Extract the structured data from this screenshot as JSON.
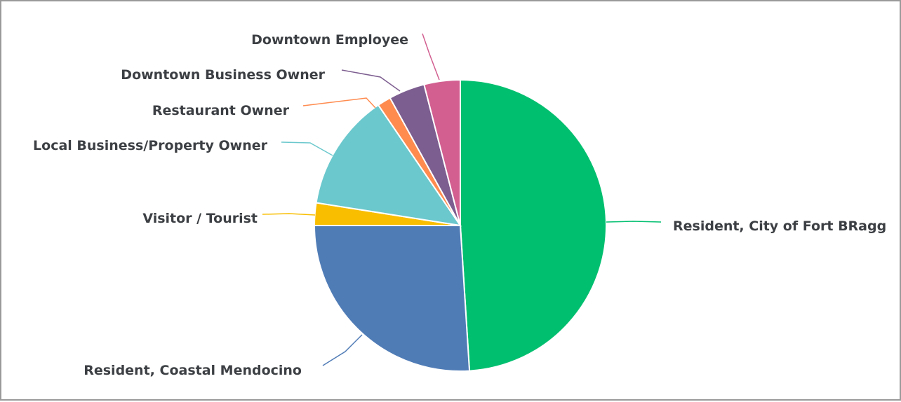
{
  "chart_data": {
    "type": "pie",
    "title": "",
    "slices": [
      {
        "label": "Resident, City of Fort BRagg",
        "value": 49.0,
        "color": "#00bf6f"
      },
      {
        "label": "Resident, Coastal Mendocino",
        "value": 26.0,
        "color": "#507cb6"
      },
      {
        "label": "Visitor / Tourist",
        "value": 2.5,
        "color": "#f9be00"
      },
      {
        "label": "Local Business/Property Owner",
        "value": 13.0,
        "color": "#6bc8cd"
      },
      {
        "label": "Restaurant Owner",
        "value": 1.5,
        "color": "#ff8b4f"
      },
      {
        "label": "Downtown Business Owner",
        "value": 4.0,
        "color": "#7d5e90"
      },
      {
        "label": "Downtown Employee",
        "value": 4.0,
        "color": "#d25f90"
      }
    ]
  }
}
